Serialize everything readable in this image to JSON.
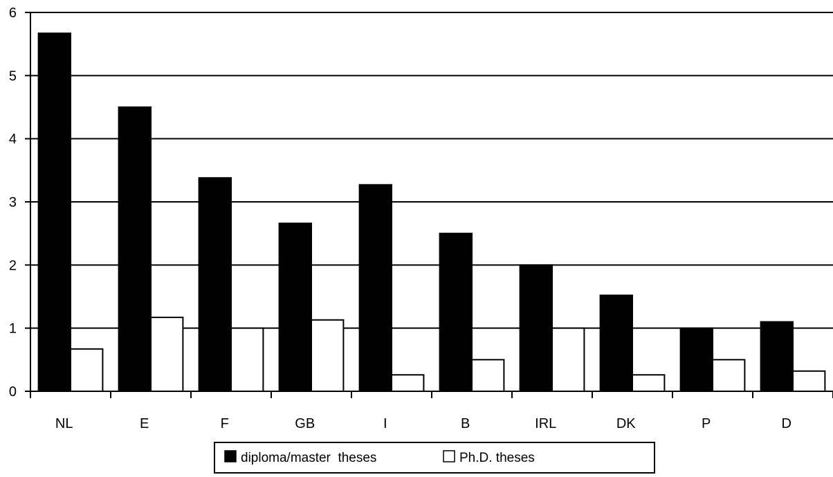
{
  "chart_data": {
    "type": "bar",
    "title": "",
    "xlabel": "",
    "ylabel": "",
    "categories": [
      "NL",
      "E",
      "F",
      "GB",
      "I",
      "B",
      "IRL",
      "DK",
      "P",
      "D"
    ],
    "series": [
      {
        "name": "diploma/master  theses",
        "values": [
          5.67,
          4.5,
          3.38,
          2.66,
          3.27,
          2.5,
          2.0,
          1.52,
          1.0,
          1.1
        ],
        "color": "#000000"
      },
      {
        "name": "Ph.D. theses",
        "values": [
          0.67,
          1.17,
          1.0,
          1.13,
          0.26,
          0.5,
          1.0,
          0.26,
          0.5,
          0.32
        ],
        "color": "#ffffff"
      }
    ],
    "ylim": [
      0,
      6
    ],
    "yticks": [
      "0",
      "1",
      "2",
      "3",
      "4",
      "5",
      "6"
    ],
    "grid": true,
    "legend": "bottom"
  }
}
